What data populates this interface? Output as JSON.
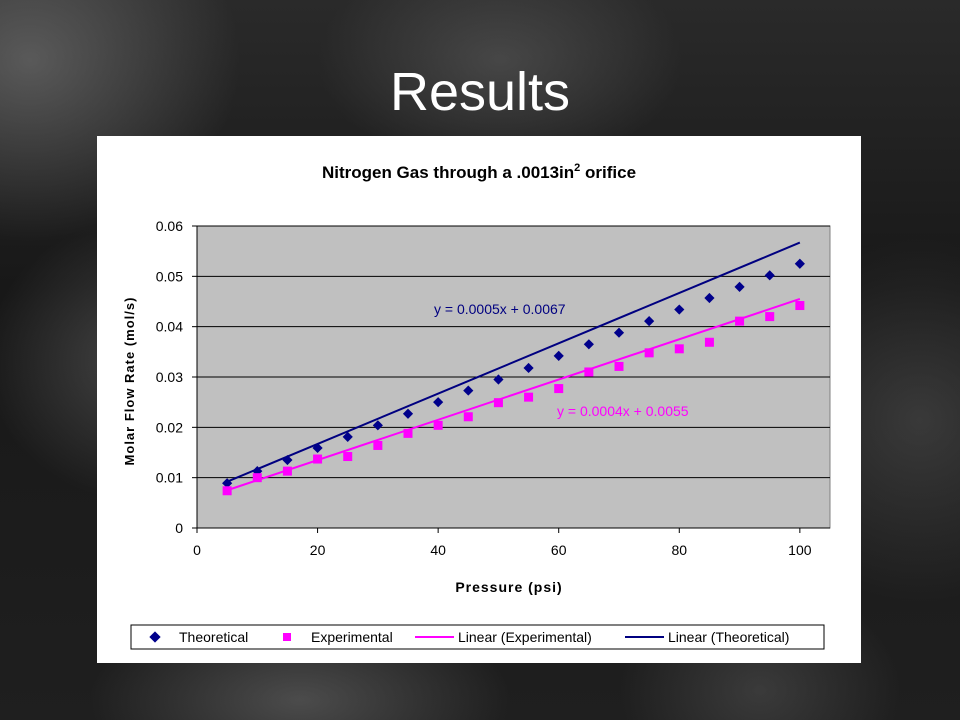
{
  "slide": {
    "title": "Results"
  },
  "chart_data": {
    "type": "scatter",
    "title_main": "Nitrogen Gas through a .0013in",
    "title_sup": "2",
    "title_tail": " orifice",
    "xlabel": "Pressure (psi)",
    "ylabel": "Molar Flow Rate (mol/s)",
    "xlim": [
      0,
      105
    ],
    "ylim": [
      0,
      0.06
    ],
    "xticks": [
      0,
      20,
      40,
      60,
      80,
      100
    ],
    "yticks": [
      0,
      0.01,
      0.02,
      0.03,
      0.04,
      0.05,
      0.06
    ],
    "ytick_labels": [
      "0",
      "0.01",
      "0.02",
      "0.03",
      "0.04",
      "0.05",
      "0.06"
    ],
    "grid": "horizontal",
    "legend": "bottom",
    "series": [
      {
        "name": "Theoretical",
        "marker": "diamond",
        "color": "#00008B",
        "x": [
          5,
          10,
          15,
          20,
          25,
          30,
          35,
          40,
          45,
          50,
          55,
          60,
          65,
          70,
          75,
          80,
          85,
          90,
          95,
          100
        ],
        "y": [
          0.0089,
          0.0113,
          0.0135,
          0.0159,
          0.0181,
          0.0204,
          0.0227,
          0.025,
          0.0273,
          0.0295,
          0.0318,
          0.0342,
          0.0365,
          0.0388,
          0.0411,
          0.0434,
          0.0457,
          0.0479,
          0.0502,
          0.0525
        ]
      },
      {
        "name": "Experimental",
        "marker": "square",
        "color": "#FF00FF",
        "x": [
          5,
          10,
          15,
          20,
          25,
          30,
          35,
          40,
          45,
          50,
          55,
          60,
          65,
          70,
          75,
          80,
          85,
          90,
          95,
          100
        ],
        "y": [
          0.0074,
          0.01,
          0.0113,
          0.0137,
          0.0142,
          0.0164,
          0.0188,
          0.0204,
          0.0221,
          0.0249,
          0.026,
          0.0277,
          0.031,
          0.0321,
          0.0348,
          0.0356,
          0.0369,
          0.0411,
          0.042,
          0.0442
        ]
      }
    ],
    "trendlines": [
      {
        "name": "Linear (Experimental)",
        "color": "#FF00FF",
        "slope": 0.0004,
        "intercept": 0.0055,
        "x_range": [
          5,
          100
        ],
        "equation": "y = 0.0004x  + 0.0055"
      },
      {
        "name": "Linear (Theoretical)",
        "color": "#000080",
        "slope": 0.0005,
        "intercept": 0.0067,
        "x_range": [
          5,
          100
        ],
        "equation": "y = 0.0005x  + 0.0067"
      }
    ]
  }
}
